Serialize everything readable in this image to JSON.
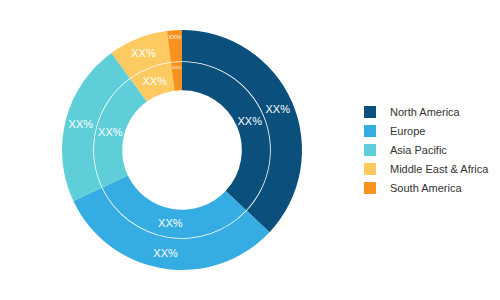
{
  "chart_data": {
    "type": "pie",
    "categories": [
      "North America",
      "Europe",
      "Asia Pacific",
      "Middle East & Africa",
      "South America"
    ],
    "values": [
      37,
      31,
      22,
      8,
      2
    ],
    "value_labels": [
      "XX%",
      "XX%",
      "XX%",
      "XX%",
      "XX%"
    ],
    "colors": [
      "#0b4f7d",
      "#36ade2",
      "#5ecfd9",
      "#fdc961",
      "#f7921e"
    ],
    "data_labels": true,
    "legend": "right"
  }
}
